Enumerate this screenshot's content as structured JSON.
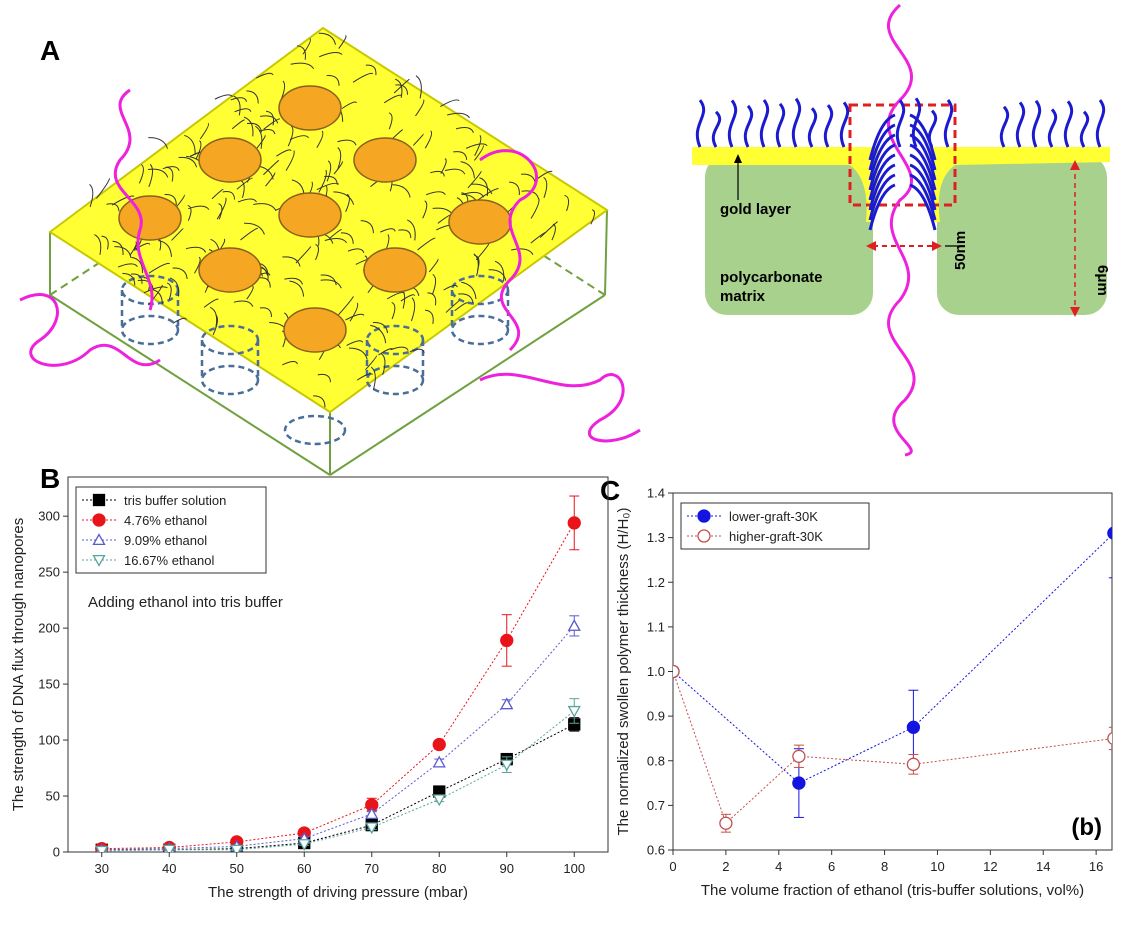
{
  "panels": {
    "a": "A",
    "b": "B",
    "c": "C"
  },
  "schematic": {
    "gold_layer": "gold layer",
    "matrix": [
      "polycarbonate",
      "matrix"
    ],
    "pore": "50nm",
    "thickness": "6μm"
  },
  "chart_data": [
    {
      "type": "scatter",
      "xlabel": "The strength of driving pressure (mbar)",
      "ylabel": "The strength of DNA flux through nanopores",
      "annotation": "Adding ethanol into tris buffer",
      "x": [
        30,
        40,
        50,
        60,
        70,
        80,
        90,
        100
      ],
      "xlim": [
        25,
        105
      ],
      "xticks": [
        30,
        40,
        50,
        60,
        70,
        80,
        90,
        100
      ],
      "ylim": [
        0,
        335
      ],
      "yticks": [
        0,
        50,
        100,
        150,
        200,
        250,
        300
      ],
      "legend": "upper left",
      "series": [
        {
          "name": "tris buffer solution",
          "color": "#000000",
          "marker": "square",
          "filled": true,
          "values": [
            2,
            2,
            3,
            8,
            24,
            54,
            83,
            114
          ],
          "errors": [
            1,
            1,
            1,
            1,
            2,
            2,
            5,
            6
          ]
        },
        {
          "name": "4.76% ethanol",
          "color": "#e8141a",
          "marker": "circle",
          "filled": true,
          "values": [
            3,
            4,
            9,
            17,
            42,
            96,
            189,
            294
          ],
          "errors": [
            1,
            1,
            1,
            2,
            6,
            3,
            23,
            24
          ]
        },
        {
          "name": "9.09% ethanol",
          "color": "#5a5ad0",
          "marker": "triangle-up",
          "filled": false,
          "values": [
            2,
            3,
            5,
            12,
            34,
            80,
            132,
            202
          ],
          "errors": [
            1,
            1,
            1,
            2,
            3,
            3,
            4,
            9
          ]
        },
        {
          "name": "16.67% ethanol",
          "color": "#5aa59c",
          "marker": "triangle-down",
          "filled": false,
          "values": [
            1,
            2,
            2,
            7,
            22,
            47,
            78,
            126
          ],
          "errors": [
            1,
            1,
            1,
            1,
            2,
            2,
            7,
            11
          ]
        }
      ]
    },
    {
      "type": "scatter",
      "xlabel": "The volume fraction of ethanol (tris-buffer solutions, vol%)",
      "ylabel": "The normalized swollen polymer thickness (H/H₀)",
      "annotation": "(b)",
      "xlim": [
        0,
        16.6
      ],
      "xticks": [
        0,
        2,
        4,
        6,
        8,
        10,
        12,
        14,
        16
      ],
      "ylim": [
        0.6,
        1.4
      ],
      "yticks": [
        0.6,
        0.7,
        0.8,
        0.9,
        {
          "value": 1,
          "label": "1.0"
        },
        1.1,
        1.2,
        1.3,
        1.4
      ],
      "legend": "upper left",
      "series": [
        {
          "name": "lower-graft-30K",
          "color": "#1414e0",
          "marker": "circle",
          "filled": true,
          "x": [
            0,
            4.76,
            9.09,
            16.67
          ],
          "values": [
            1.0,
            0.75,
            0.875,
            1.31
          ],
          "errors": [
            0,
            0.077,
            0.083,
            0.1
          ]
        },
        {
          "name": "higher-graft-30K",
          "color": "#c0504d",
          "marker": "circle",
          "filled": false,
          "x": [
            0,
            2,
            4.76,
            9.09,
            16.67
          ],
          "values": [
            1.0,
            0.66,
            0.81,
            0.792,
            0.85
          ],
          "errors": [
            0,
            0.02,
            0.025,
            0.022,
            0.025
          ]
        }
      ]
    }
  ]
}
